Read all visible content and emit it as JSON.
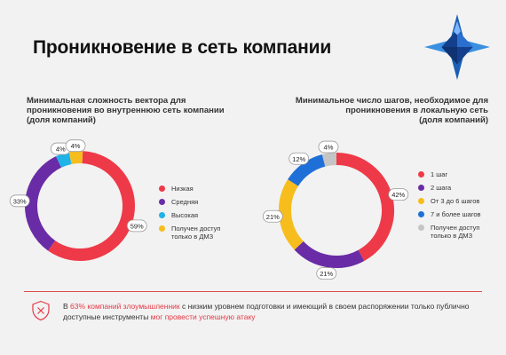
{
  "page": {
    "title": "Проникновение в сеть компании"
  },
  "colors": {
    "red": "#ee3a48",
    "purple": "#6a2ca6",
    "cyan": "#1fb3e8",
    "yellow": "#f7bd1d",
    "blue": "#1f6fd8",
    "gray": "#c5c5c5"
  },
  "chart_data": [
    {
      "type": "pie",
      "style": "donut",
      "title": "Минимальная сложность вектора для\nпроникновения во внутреннюю сеть компании\n(доля компаний)",
      "labels": [
        "Низкая",
        "Средняя",
        "Высокая",
        "Получен доступ\nтолько в ДМЗ"
      ],
      "values": [
        59,
        33,
        4,
        4
      ],
      "value_labels": [
        "59%",
        "33%",
        "4%",
        "4%"
      ],
      "colors": [
        "#ee3a48",
        "#6a2ca6",
        "#1fb3e8",
        "#f7bd1d"
      ],
      "legend": "right"
    },
    {
      "type": "pie",
      "style": "donut",
      "title": "Минимальное число шагов, необходимое для\nпроникновения в локальную сеть\n(доля компаний)",
      "labels": [
        "1 шаг",
        "2 шага",
        "От 3 до 6 шагов",
        "7 и более шагов",
        "Получен доступ\nтолько в ДМЗ"
      ],
      "values": [
        42,
        21,
        21,
        12,
        4
      ],
      "value_labels": [
        "42%",
        "21%",
        "21%",
        "12%",
        "4%"
      ],
      "colors": [
        "#ee3a48",
        "#6a2ca6",
        "#f7bd1d",
        "#1f6fd8",
        "#c5c5c5"
      ],
      "legend": "right"
    }
  ],
  "footer": {
    "p1": "В ",
    "highlight1": "63% компаний злоумышленник",
    "p2": " с низким уровнем подготовки и имеющий в своем распоряжении только публично доступные инструменты ",
    "highlight2": "мог провести успешную атаку"
  }
}
